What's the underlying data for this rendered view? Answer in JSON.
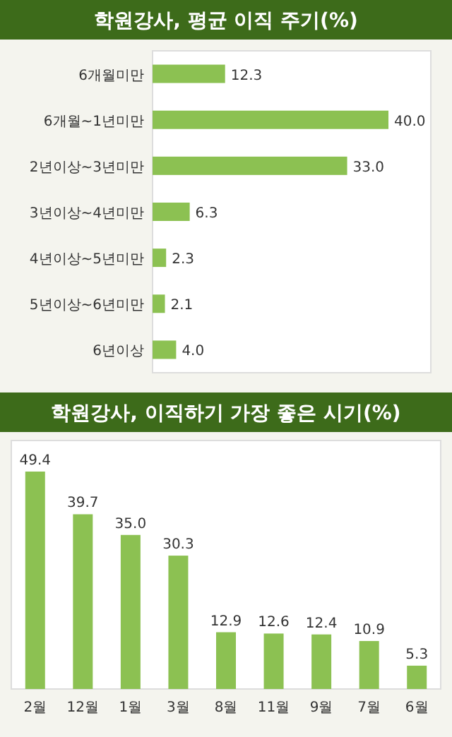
{
  "chart_data": [
    {
      "type": "bar",
      "title": "학원강사, 평균 이직 주기(%)",
      "orientation": "horizontal",
      "color": "#8cc152",
      "categories": [
        "6개월미만",
        "6개월~1년미만",
        "2년이상~3년미만",
        "3년이상~4년미만",
        "4년이상~5년미만",
        "5년이상~6년미만",
        "6년이상"
      ],
      "values": [
        12.3,
        40.0,
        33.0,
        6.3,
        2.3,
        2.1,
        4.0
      ],
      "value_labels": [
        "12.3",
        "40.0",
        "33.0",
        "6.3",
        "2.3",
        "2.1",
        "4.0"
      ]
    },
    {
      "type": "bar",
      "title": "학원강사, 이직하기 가장 좋은 시기(%)",
      "color": "#8cc152",
      "categories": [
        "2월",
        "12월",
        "1월",
        "3월",
        "8월",
        "11월",
        "9월",
        "7월",
        "6월"
      ],
      "values": [
        49.4,
        39.7,
        35.0,
        30.3,
        12.9,
        12.6,
        12.4,
        10.9,
        5.3
      ],
      "value_labels": [
        "49.4",
        "39.7",
        "35.0",
        "30.3",
        "12.9",
        "12.6",
        "12.4",
        "10.9",
        "5.3"
      ]
    }
  ]
}
